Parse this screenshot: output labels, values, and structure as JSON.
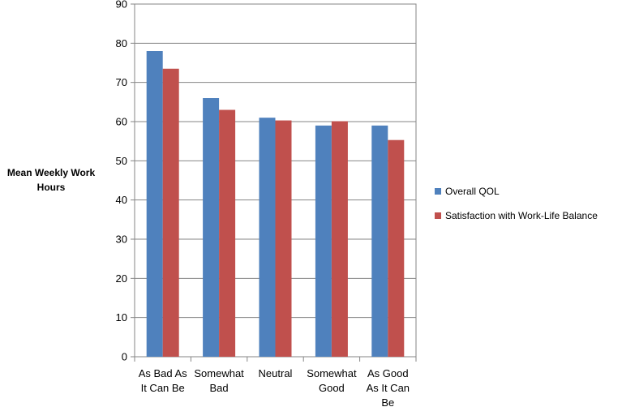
{
  "chart_data": {
    "type": "bar",
    "categories": [
      [
        "As Bad As",
        "It Can Be"
      ],
      [
        "Somewhat",
        "Bad"
      ],
      [
        "Neutral"
      ],
      [
        "Somewhat",
        "Good"
      ],
      [
        "As Good",
        "As It Can",
        "Be"
      ]
    ],
    "series": [
      {
        "name": "Overall QOL",
        "color": "#4F81BD",
        "values": [
          78,
          66,
          61,
          59,
          59
        ]
      },
      {
        "name": "Satisfaction with Work-Life Balance",
        "color": "#C0504D",
        "values": [
          73.5,
          63,
          60.3,
          60.1,
          55.3
        ]
      }
    ],
    "ylabel": [
      "Mean Weekly Work",
      "Hours"
    ],
    "ylim": [
      0,
      90
    ],
    "yticks": [
      0,
      10,
      20,
      30,
      40,
      50,
      60,
      70,
      80,
      90
    ],
    "legend": "right",
    "grid": true
  }
}
